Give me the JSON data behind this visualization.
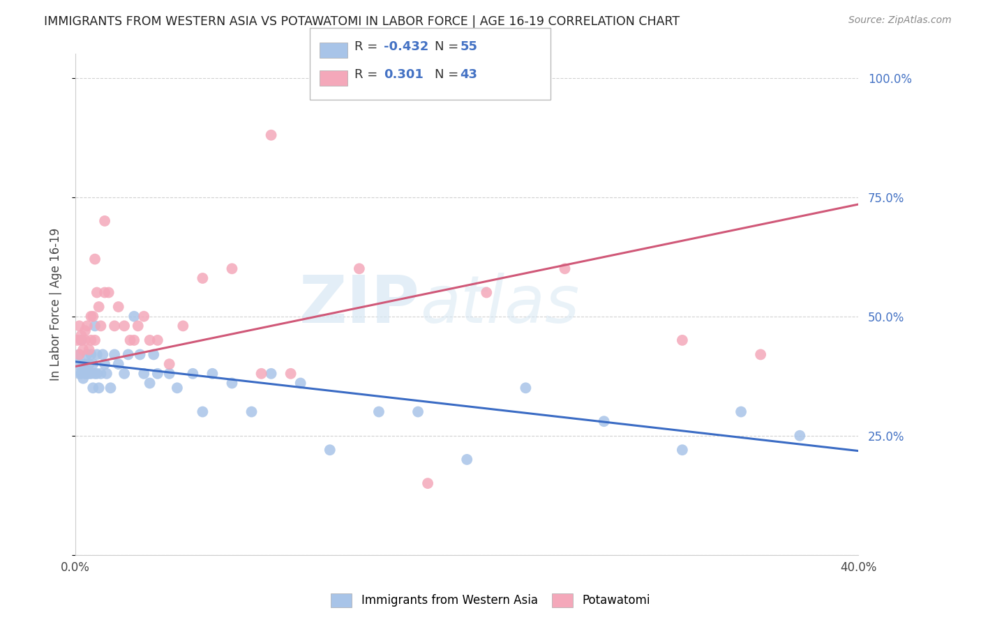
{
  "title": "IMMIGRANTS FROM WESTERN ASIA VS POTAWATOMI IN LABOR FORCE | AGE 16-19 CORRELATION CHART",
  "source": "Source: ZipAtlas.com",
  "ylabel": "In Labor Force | Age 16-19",
  "xlim": [
    0.0,
    0.4
  ],
  "ylim": [
    0.0,
    1.05
  ],
  "yticks": [
    0.0,
    0.25,
    0.5,
    0.75,
    1.0
  ],
  "ytick_labels": [
    "",
    "25.0%",
    "50.0%",
    "75.0%",
    "100.0%"
  ],
  "xticks": [
    0.0,
    0.1,
    0.2,
    0.3,
    0.4
  ],
  "xtick_labels": [
    "0.0%",
    "",
    "",
    "",
    "40.0%"
  ],
  "blue_r": -0.432,
  "blue_n": 55,
  "pink_r": 0.301,
  "pink_n": 43,
  "blue_color": "#A8C4E8",
  "pink_color": "#F4A8BA",
  "blue_line_color": "#3A6BC4",
  "pink_line_color": "#D05878",
  "watermark_zip": "ZIP",
  "watermark_atlas": "atlas",
  "legend_label_blue": "Immigrants from Western Asia",
  "legend_label_pink": "Potawatomi",
  "blue_x": [
    0.001,
    0.002,
    0.002,
    0.003,
    0.003,
    0.004,
    0.004,
    0.005,
    0.005,
    0.006,
    0.006,
    0.007,
    0.007,
    0.008,
    0.008,
    0.009,
    0.009,
    0.01,
    0.01,
    0.011,
    0.011,
    0.012,
    0.013,
    0.014,
    0.015,
    0.016,
    0.018,
    0.02,
    0.022,
    0.025,
    0.027,
    0.03,
    0.033,
    0.035,
    0.038,
    0.04,
    0.042,
    0.048,
    0.052,
    0.06,
    0.065,
    0.07,
    0.08,
    0.09,
    0.1,
    0.115,
    0.13,
    0.155,
    0.175,
    0.2,
    0.23,
    0.27,
    0.31,
    0.34,
    0.37
  ],
  "blue_y": [
    0.4,
    0.38,
    0.42,
    0.38,
    0.45,
    0.4,
    0.37,
    0.4,
    0.38,
    0.42,
    0.38,
    0.4,
    0.38,
    0.42,
    0.38,
    0.4,
    0.35,
    0.48,
    0.38,
    0.42,
    0.38,
    0.35,
    0.38,
    0.42,
    0.4,
    0.38,
    0.35,
    0.42,
    0.4,
    0.38,
    0.42,
    0.5,
    0.42,
    0.38,
    0.36,
    0.42,
    0.38,
    0.38,
    0.35,
    0.38,
    0.3,
    0.38,
    0.36,
    0.3,
    0.38,
    0.36,
    0.22,
    0.3,
    0.3,
    0.2,
    0.35,
    0.28,
    0.22,
    0.3,
    0.25
  ],
  "pink_x": [
    0.001,
    0.002,
    0.002,
    0.003,
    0.003,
    0.004,
    0.005,
    0.005,
    0.006,
    0.007,
    0.008,
    0.008,
    0.009,
    0.01,
    0.011,
    0.012,
    0.013,
    0.015,
    0.017,
    0.02,
    0.022,
    0.025,
    0.028,
    0.03,
    0.032,
    0.035,
    0.038,
    0.042,
    0.048,
    0.055,
    0.065,
    0.08,
    0.095,
    0.11,
    0.145,
    0.18,
    0.21,
    0.25,
    0.31,
    0.35,
    0.01,
    0.015,
    0.1
  ],
  "pink_y": [
    0.45,
    0.42,
    0.48,
    0.45,
    0.46,
    0.43,
    0.47,
    0.45,
    0.48,
    0.43,
    0.5,
    0.45,
    0.5,
    0.45,
    0.55,
    0.52,
    0.48,
    0.55,
    0.55,
    0.48,
    0.52,
    0.48,
    0.45,
    0.45,
    0.48,
    0.5,
    0.45,
    0.45,
    0.4,
    0.48,
    0.58,
    0.6,
    0.38,
    0.38,
    0.6,
    0.15,
    0.55,
    0.6,
    0.45,
    0.42,
    0.62,
    0.7,
    0.88
  ],
  "blue_line_x0": 0.0,
  "blue_line_y0": 0.405,
  "blue_line_x1": 0.4,
  "blue_line_y1": 0.218,
  "pink_line_x0": 0.0,
  "pink_line_y0": 0.395,
  "pink_line_x1": 0.4,
  "pink_line_y1": 0.735
}
